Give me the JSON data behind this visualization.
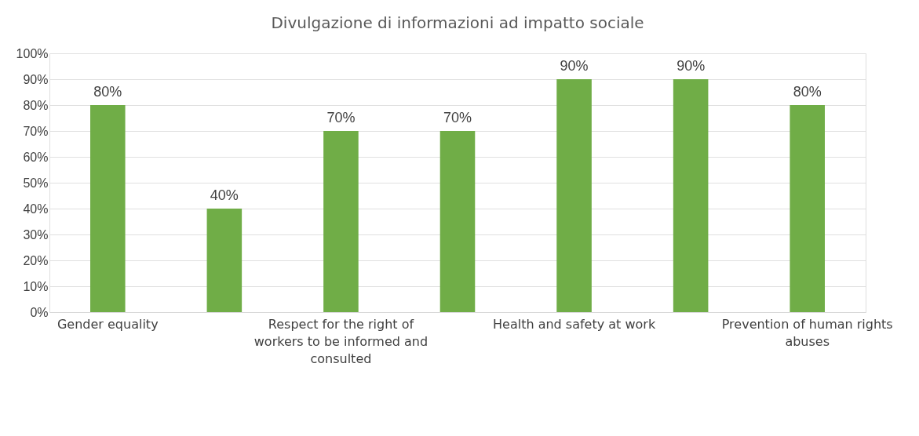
{
  "chart_data": {
    "type": "bar",
    "title": "Divulgazione di informazioni ad impatto sociale",
    "categories": [
      "Gender equality",
      null,
      "Respect for the right of workers to be informed and consulted",
      null,
      "Health and safety at work",
      null,
      "Prevention of human rights abuses"
    ],
    "values": [
      80,
      40,
      70,
      70,
      90,
      90,
      80
    ],
    "value_labels": [
      "80%",
      "40%",
      "70%",
      "70%",
      "90%",
      "90%",
      "80%"
    ],
    "color": "#70ad47",
    "ylim": [
      0,
      100
    ],
    "yticks": [
      {
        "value": 0,
        "label": "0%"
      },
      {
        "value": 10,
        "label": "10%"
      },
      {
        "value": 20,
        "label": "20%"
      },
      {
        "value": 30,
        "label": "30%"
      },
      {
        "value": 40,
        "label": "40%"
      },
      {
        "value": 50,
        "label": "50%"
      },
      {
        "value": 60,
        "label": "60%"
      },
      {
        "value": 70,
        "label": "70%"
      },
      {
        "value": 80,
        "label": "80%"
      },
      {
        "value": 90,
        "label": "90%"
      },
      {
        "value": 100,
        "label": "100%"
      }
    ],
    "grid": "y"
  }
}
